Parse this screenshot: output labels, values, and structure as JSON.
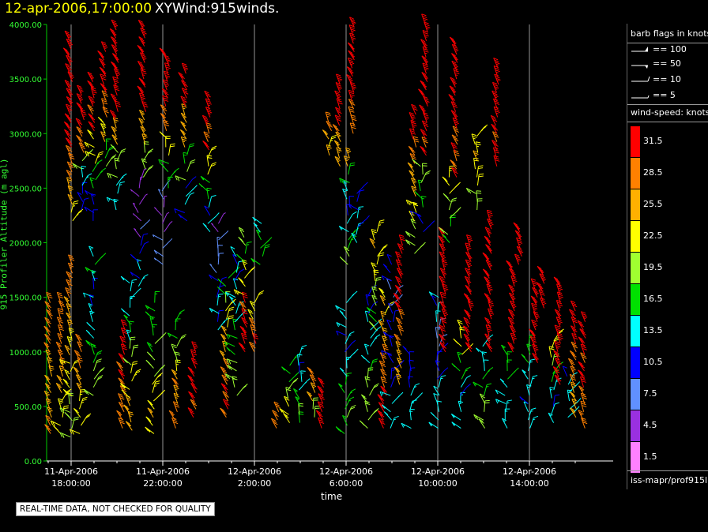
{
  "header": {
    "date_text": "12-apr-2006,17:00:00",
    "title_text": "XYWind:915winds."
  },
  "axes": {
    "ylabel": "915 Profiler Altitude (m agl)",
    "xlabel": "time",
    "y_ticks": [
      "0.00",
      "500.00",
      "1000.00",
      "1500.00",
      "2000.00",
      "2500.00",
      "3000.00",
      "3500.00",
      "4000.00"
    ],
    "x_ticks": [
      {
        "date": "11-Apr-2006",
        "time": "18:00:00"
      },
      {
        "date": "11-Apr-2006",
        "time": "22:00:00"
      },
      {
        "date": "12-Apr-2006",
        "time": "2:00:00"
      },
      {
        "date": "12-Apr-2006",
        "time": "6:00:00"
      },
      {
        "date": "12-Apr-2006",
        "time": "10:00:00"
      },
      {
        "date": "12-Apr-2006",
        "time": "14:00:00"
      }
    ]
  },
  "notice": "REAL-TIME DATA, NOT CHECKED FOR QUALITY",
  "legend": {
    "flags_title": "barb flags in knots",
    "flags": [
      "== 100",
      "== 50",
      "== 10",
      "== 5"
    ],
    "speed_title": "wind-speed: knots",
    "speed_bins": [
      {
        "label": "31.5",
        "color": "#ff0000"
      },
      {
        "label": "28.5",
        "color": "#ff8000"
      },
      {
        "label": "25.5",
        "color": "#ffb000"
      },
      {
        "label": "22.5",
        "color": "#ffff00"
      },
      {
        "label": "19.5",
        "color": "#a0ff30"
      },
      {
        "label": "16.5",
        "color": "#00e000"
      },
      {
        "label": "13.5",
        "color": "#00ffff"
      },
      {
        "label": "10.5",
        "color": "#0000ff"
      },
      {
        "label": "7.5",
        "color": "#6090ff"
      },
      {
        "label": "4.5",
        "color": "#9a30e0"
      },
      {
        "label": "1.5",
        "color": "#ff80ff"
      }
    ],
    "source": "iss-mapr/prof915l"
  },
  "chart_data": {
    "type": "wind-barb profile time-height",
    "ylim": [
      0,
      4000
    ],
    "xlim_hours_from_ref": [
      -0.8,
      22.8
    ],
    "grid_x": true,
    "profiles": [
      {
        "t": -0.9,
        "base": 250,
        "top": 1500,
        "speeds": [
          28,
          27,
          26,
          25,
          26,
          27,
          28,
          29
        ]
      },
      {
        "t": -0.4,
        "base": 250,
        "top": 1450,
        "speeds": [
          22,
          23,
          25,
          27,
          28,
          29,
          30
        ]
      },
      {
        "t": 0.0,
        "base": 220,
        "top": 1800,
        "speeds": [
          20,
          22,
          24,
          26,
          28
        ]
      },
      {
        "t": 0.0,
        "base": 2200,
        "top": 3900,
        "speeds": [
          24,
          27,
          30,
          32,
          34,
          35,
          36
        ]
      },
      {
        "t": 0.4,
        "base": 250,
        "top": 1100,
        "speeds": [
          22,
          24,
          26,
          27,
          28
        ]
      },
      {
        "t": 0.5,
        "base": 2300,
        "top": 3400,
        "speeds": [
          10,
          14,
          20,
          28,
          33,
          35
        ]
      },
      {
        "t": 1.0,
        "base": 2200,
        "top": 3500,
        "speeds": [
          10,
          16,
          22,
          30,
          34
        ]
      },
      {
        "t": 1.0,
        "base": 600,
        "top": 1900,
        "speeds": [
          20,
          18,
          14,
          12,
          15
        ]
      },
      {
        "t": 1.5,
        "base": 2700,
        "top": 3800,
        "speeds": [
          18,
          24,
          30,
          33,
          35
        ]
      },
      {
        "t": 2.0,
        "base": 2300,
        "top": 4000,
        "speeds": [
          14,
          20,
          26,
          32,
          35,
          36
        ]
      },
      {
        "t": 2.3,
        "base": 300,
        "top": 1200,
        "speeds": [
          28,
          29,
          30,
          31
        ]
      },
      {
        "t": 2.6,
        "base": 280,
        "top": 1700,
        "speeds": [
          25,
          22,
          20,
          15,
          13
        ]
      },
      {
        "t": 3.0,
        "base": 1600,
        "top": 2600,
        "speeds": [
          12,
          10,
          6,
          5,
          4
        ]
      },
      {
        "t": 3.2,
        "base": 2600,
        "top": 4000,
        "speeds": [
          20,
          26,
          32,
          35,
          36
        ]
      },
      {
        "t": 3.6,
        "base": 250,
        "top": 1500,
        "speeds": [
          24,
          22,
          20,
          18,
          16
        ]
      },
      {
        "t": 4.0,
        "base": 1800,
        "top": 2500,
        "speeds": [
          8,
          6,
          4,
          5,
          7
        ]
      },
      {
        "t": 4.2,
        "base": 2500,
        "top": 3700,
        "speeds": [
          16,
          22,
          28,
          32,
          35
        ]
      },
      {
        "t": 4.6,
        "base": 300,
        "top": 1300,
        "speeds": [
          28,
          27,
          24,
          20,
          16
        ]
      },
      {
        "t": 5.0,
        "base": 2200,
        "top": 3600,
        "speeds": [
          12,
          18,
          26,
          32
        ]
      },
      {
        "t": 5.4,
        "base": 400,
        "top": 1000,
        "speeds": [
          30,
          31,
          32,
          33
        ]
      },
      {
        "t": 6.0,
        "base": 2100,
        "top": 3300,
        "speeds": [
          12,
          16,
          22,
          30,
          33
        ]
      },
      {
        "t": 6.4,
        "base": 1200,
        "top": 2200,
        "speeds": [
          12,
          10,
          8,
          6
        ]
      },
      {
        "t": 6.8,
        "base": 400,
        "top": 1700,
        "speeds": [
          30,
          29,
          26,
          22,
          18
        ]
      },
      {
        "t": 7.2,
        "base": 600,
        "top": 1900,
        "speeds": [
          18,
          16,
          13,
          12
        ]
      },
      {
        "t": 7.6,
        "base": 1000,
        "top": 2100,
        "speeds": [
          32,
          30,
          24,
          18
        ]
      },
      {
        "t": 8.0,
        "base": 1000,
        "top": 1500,
        "speeds": [
          30,
          28,
          22
        ]
      },
      {
        "t": 8.3,
        "base": 1800,
        "top": 2200,
        "speeds": [
          18,
          16,
          14
        ]
      },
      {
        "t": 9.0,
        "base": 300,
        "top": 500,
        "speeds": [
          30,
          29
        ]
      },
      {
        "t": 9.5,
        "base": 350,
        "top": 900,
        "speeds": [
          22,
          20,
          17
        ]
      },
      {
        "t": 10.0,
        "base": 350,
        "top": 1000,
        "speeds": [
          18,
          16,
          14,
          12
        ]
      },
      {
        "t": 10.6,
        "base": 400,
        "top": 800,
        "speeds": [
          20,
          24,
          28
        ]
      },
      {
        "t": 11.0,
        "base": 300,
        "top": 700,
        "speeds": [
          30,
          32,
          33
        ]
      },
      {
        "t": 11.3,
        "base": 2800,
        "top": 3100,
        "speeds": [
          24,
          26,
          28
        ]
      },
      {
        "t": 11.7,
        "base": 2700,
        "top": 3500,
        "speeds": [
          26,
          30,
          33
        ]
      },
      {
        "t": 12.0,
        "base": 250,
        "top": 1500,
        "speeds": [
          18,
          16,
          14,
          12,
          14
        ]
      },
      {
        "t": 12.1,
        "base": 1800,
        "top": 2800,
        "speeds": [
          20,
          16,
          13,
          11,
          13,
          18,
          24
        ]
      },
      {
        "t": 12.3,
        "base": 3000,
        "top": 4000,
        "speeds": [
          30,
          33,
          35,
          36
        ]
      },
      {
        "t": 12.5,
        "base": 2000,
        "top": 2500,
        "speeds": [
          14,
          12,
          10
        ]
      },
      {
        "t": 13.0,
        "base": 300,
        "top": 1500,
        "speeds": [
          20,
          18,
          14,
          12
        ]
      },
      {
        "t": 13.3,
        "base": 1200,
        "top": 2100,
        "speeds": [
          18,
          20,
          22,
          24
        ]
      },
      {
        "t": 13.7,
        "base": 300,
        "top": 1500,
        "speeds": [
          32,
          30,
          28,
          26,
          24
        ]
      },
      {
        "t": 14.0,
        "base": 300,
        "top": 1800,
        "speeds": [
          14,
          12,
          10,
          9
        ]
      },
      {
        "t": 14.4,
        "base": 700,
        "top": 2000,
        "speeds": [
          26,
          28,
          30,
          32
        ]
      },
      {
        "t": 14.8,
        "base": 300,
        "top": 1000,
        "speeds": [
          15,
          12,
          11,
          10
        ]
      },
      {
        "t": 15.0,
        "base": 1900,
        "top": 3200,
        "speeds": [
          20,
          22,
          26,
          30,
          33
        ]
      },
      {
        "t": 15.3,
        "base": 2100,
        "top": 2700,
        "speeds": [
          12,
          16,
          18
        ]
      },
      {
        "t": 15.5,
        "base": 2800,
        "top": 4000,
        "speeds": [
          30,
          33,
          35,
          36
        ]
      },
      {
        "t": 16.0,
        "base": 300,
        "top": 1500,
        "speeds": [
          13,
          12,
          10,
          9,
          12
        ]
      },
      {
        "t": 16.3,
        "base": 1000,
        "top": 2100,
        "speeds": [
          32,
          33,
          34,
          35
        ]
      },
      {
        "t": 16.5,
        "base": 2000,
        "top": 2600,
        "speeds": [
          18,
          20,
          22
        ]
      },
      {
        "t": 16.8,
        "base": 2600,
        "top": 3800,
        "speeds": [
          30,
          33,
          35
        ]
      },
      {
        "t": 17.0,
        "base": 300,
        "top": 1200,
        "speeds": [
          14,
          12,
          16,
          22
        ]
      },
      {
        "t": 17.4,
        "base": 1000,
        "top": 2000,
        "speeds": [
          32,
          34,
          35,
          36
        ]
      },
      {
        "t": 17.7,
        "base": 2300,
        "top": 3000,
        "speeds": [
          20,
          22,
          24
        ]
      },
      {
        "t": 18.0,
        "base": 300,
        "top": 1100,
        "speeds": [
          18,
          16,
          13
        ]
      },
      {
        "t": 18.3,
        "base": 1000,
        "top": 2200,
        "speeds": [
          33,
          34,
          35
        ]
      },
      {
        "t": 18.6,
        "base": 2700,
        "top": 3600,
        "speeds": [
          30,
          33,
          35
        ]
      },
      {
        "t": 19.0,
        "base": 300,
        "top": 1000,
        "speeds": [
          14,
          13,
          16
        ]
      },
      {
        "t": 19.3,
        "base": 1000,
        "top": 1800,
        "speeds": [
          34,
          35,
          36
        ]
      },
      {
        "t": 19.6,
        "base": 1800,
        "top": 2100,
        "speeds": [
          33,
          34
        ]
      },
      {
        "t": 20.0,
        "base": 300,
        "top": 1100,
        "speeds": [
          13,
          12,
          14,
          16
        ]
      },
      {
        "t": 20.3,
        "base": 900,
        "top": 1600,
        "speeds": [
          34,
          35,
          36
        ]
      },
      {
        "t": 20.6,
        "base": 1400,
        "top": 1700,
        "speeds": [
          33,
          34
        ]
      },
      {
        "t": 21.0,
        "base": 350,
        "top": 1100,
        "speeds": [
          12,
          14,
          18,
          22
        ]
      },
      {
        "t": 21.3,
        "base": 700,
        "top": 1600,
        "speeds": [
          32,
          34,
          35
        ]
      },
      {
        "t": 21.7,
        "base": 400,
        "top": 800,
        "speeds": [
          14,
          13,
          12
        ]
      },
      {
        "t": 22.0,
        "base": 400,
        "top": 1400,
        "speeds": [
          26,
          28,
          30,
          31
        ]
      },
      {
        "t": 22.4,
        "base": 300,
        "top": 1300,
        "speeds": [
          28,
          30,
          32
        ]
      }
    ]
  }
}
